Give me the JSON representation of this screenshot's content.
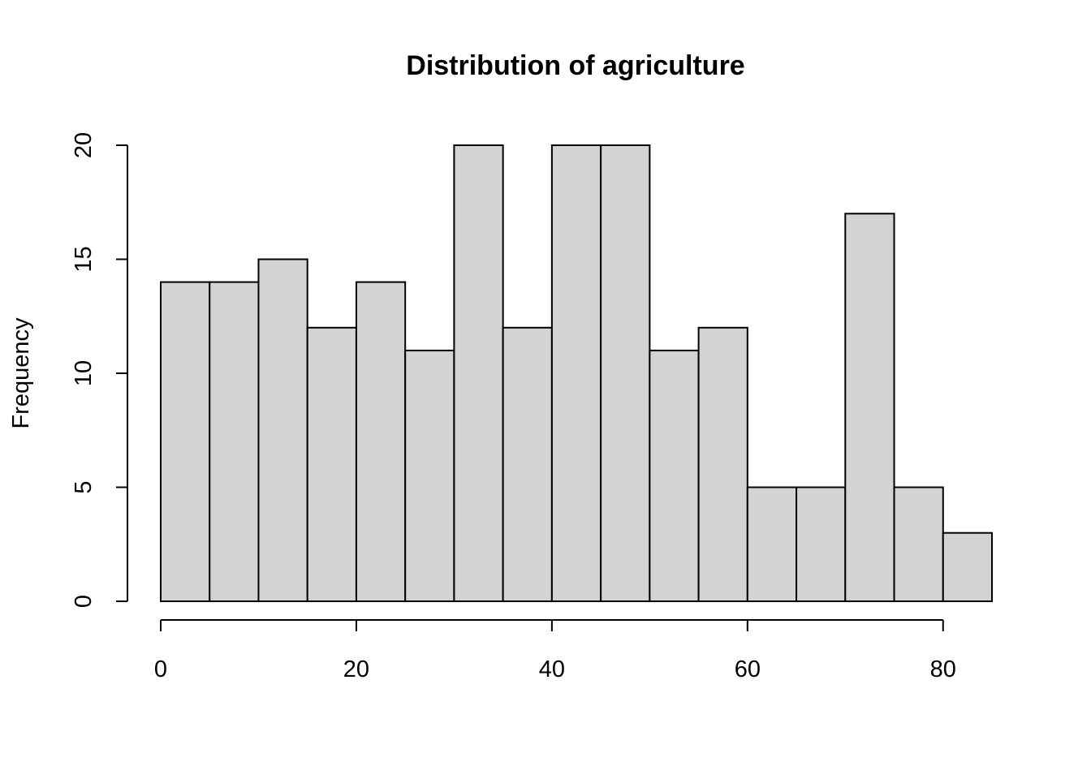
{
  "chart_data": {
    "type": "bar",
    "title": "Distribution of agriculture",
    "xlabel": "",
    "ylabel": "Frequency",
    "bin_edges": [
      0,
      5,
      10,
      15,
      20,
      25,
      30,
      35,
      40,
      45,
      50,
      55,
      60,
      65,
      70,
      75,
      80,
      85
    ],
    "values": [
      14,
      14,
      15,
      12,
      14,
      11,
      20,
      12,
      20,
      20,
      11,
      12,
      5,
      5,
      17,
      5,
      3
    ],
    "xlim": [
      0,
      85
    ],
    "ylim": [
      0,
      20
    ],
    "x_ticks": [
      0,
      20,
      40,
      60,
      80
    ],
    "x_tick_labels": [
      "0",
      "20",
      "40",
      "60",
      "80"
    ],
    "y_ticks": [
      0,
      5,
      10,
      15,
      20
    ],
    "y_tick_labels": [
      "0",
      "5",
      "10",
      "15",
      "20"
    ],
    "grid": false,
    "bar_color": "#d3d3d3",
    "edge_color": "#000000"
  }
}
